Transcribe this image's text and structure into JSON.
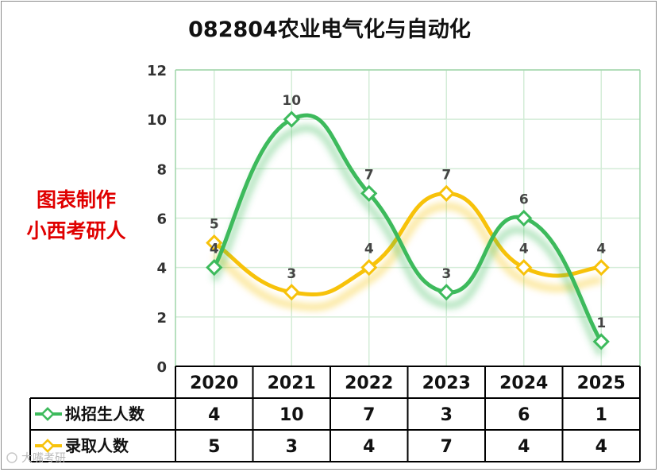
{
  "chart_data": {
    "type": "line",
    "title": "082804农业电气化与自动化",
    "categories": [
      "2020",
      "2021",
      "2022",
      "2023",
      "2024",
      "2025"
    ],
    "ylim": [
      0,
      12
    ],
    "yticks": [
      "0",
      "2",
      "4",
      "6",
      "8",
      "10",
      "12"
    ],
    "grid": true,
    "legend": "data-table",
    "series": [
      {
        "name": "拟招生人数",
        "values": [
          4,
          10,
          7,
          3,
          6,
          1
        ],
        "color": "#3dba5c"
      },
      {
        "name": "录取人数",
        "values": [
          5,
          3,
          4,
          7,
          4,
          4
        ],
        "color": "#f7c20a"
      }
    ]
  },
  "watermark": {
    "line1": "图表制作",
    "line2": "小西考研人"
  },
  "footer": {
    "logo_text": "大嘴考研"
  }
}
